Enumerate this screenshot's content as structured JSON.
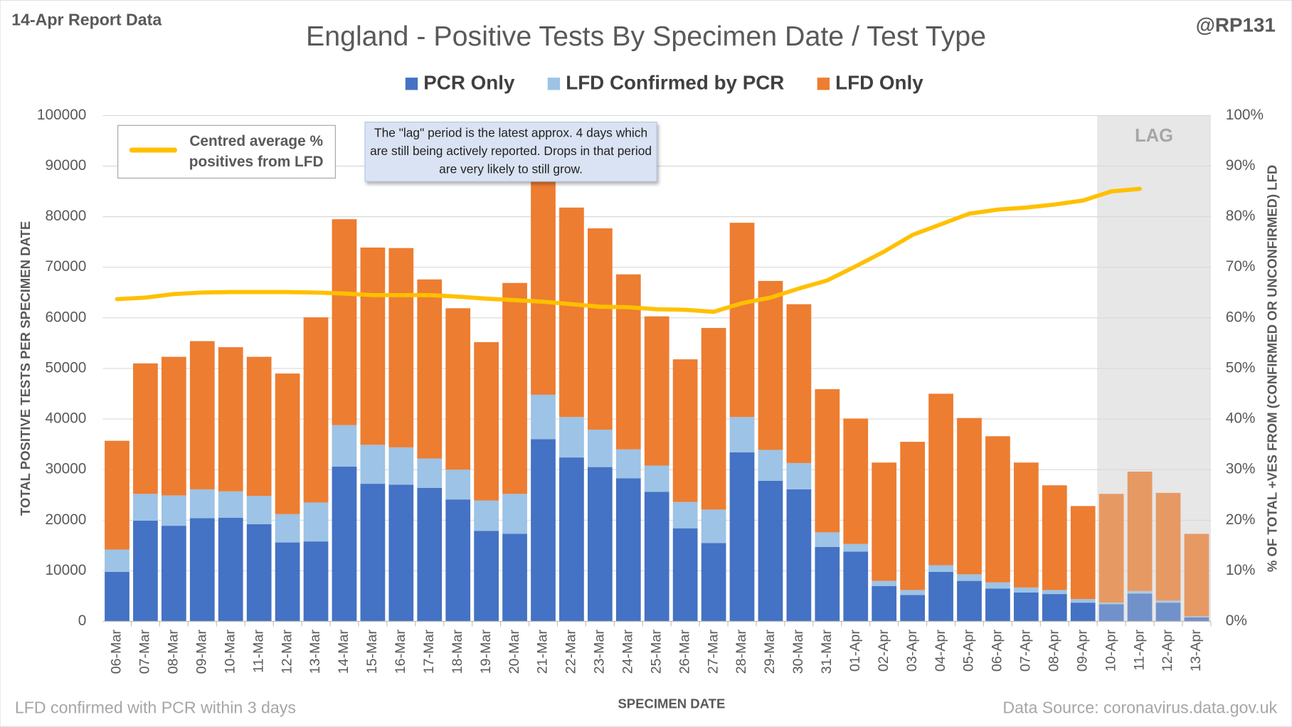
{
  "chart_data": {
    "type": "bar",
    "stacked": true,
    "title": "England - Positive Tests By Specimen Date / Test Type",
    "report_label": "14-Apr Report Data",
    "author": "@RP131",
    "footnote": "LFD confirmed with PCR within 3 days",
    "source": "Data Source: coronavirus.data.gov.uk",
    "xlabel": "SPECIMEN DATE",
    "ylabel": "TOTAL POSITIVE TESTS PER SPECIMEN DATE",
    "y2label": "% OF TOTAL +VES FROM (CONFIRMED OR UNCONFIRMED) LFD",
    "annotation": "The \"lag\" period is the latest approx. 4 days which are still being actively reported.  Drops in that period are very likely to still grow.",
    "lag_region": {
      "label": "LAG",
      "from": "10-Apr",
      "to": "13-Apr"
    },
    "categories": [
      "06-Mar",
      "07-Mar",
      "08-Mar",
      "09-Mar",
      "10-Mar",
      "11-Mar",
      "12-Mar",
      "13-Mar",
      "14-Mar",
      "15-Mar",
      "16-Mar",
      "17-Mar",
      "18-Mar",
      "19-Mar",
      "20-Mar",
      "21-Mar",
      "22-Mar",
      "23-Mar",
      "24-Mar",
      "25-Mar",
      "26-Mar",
      "27-Mar",
      "28-Mar",
      "29-Mar",
      "30-Mar",
      "31-Mar",
      "01-Apr",
      "02-Apr",
      "03-Apr",
      "04-Apr",
      "05-Apr",
      "06-Apr",
      "07-Apr",
      "08-Apr",
      "09-Apr",
      "10-Apr",
      "11-Apr",
      "12-Apr",
      "13-Apr"
    ],
    "series": [
      {
        "name": "PCR Only",
        "color": "#4472c4",
        "values": [
          9800,
          19900,
          18900,
          20400,
          20500,
          19200,
          15600,
          15800,
          30600,
          27200,
          27000,
          26400,
          24100,
          17900,
          17300,
          36000,
          32400,
          30500,
          28300,
          25600,
          18400,
          15500,
          33400,
          27800,
          26100,
          14700,
          13800,
          7000,
          5200,
          9800,
          8000,
          6500,
          5700,
          5400,
          3700,
          3400,
          5500,
          3700,
          800
        ]
      },
      {
        "name": "LFD Confirmed by PCR",
        "color": "#9dc3e6",
        "values": [
          4400,
          5300,
          6000,
          5700,
          5200,
          5600,
          5600,
          7700,
          8200,
          7700,
          7400,
          5800,
          5900,
          6000,
          7900,
          8800,
          8000,
          7400,
          5700,
          5200,
          5200,
          6600,
          7000,
          6100,
          5200,
          2900,
          1500,
          1000,
          1000,
          1300,
          1300,
          1200,
          1000,
          800,
          700,
          300,
          500,
          400,
          200
        ]
      },
      {
        "name": "LFD Only",
        "color": "#ed7d31",
        "values": [
          21500,
          25800,
          27400,
          29300,
          28500,
          27500,
          27800,
          36600,
          40700,
          39000,
          39400,
          35400,
          31900,
          31300,
          41700,
          43200,
          41400,
          39800,
          34600,
          29500,
          28200,
          35900,
          38400,
          33400,
          31400,
          28300,
          24800,
          23400,
          29300,
          33900,
          30900,
          28900,
          24700,
          20700,
          18400,
          21500,
          23600,
          21300,
          16300
        ]
      },
      {
        "name": "Centred average % positives from LFD",
        "type": "line",
        "axis": "y2",
        "color": "#ffc000",
        "values": [
          63.7,
          64,
          64.7,
          65,
          65.1,
          65.1,
          65.1,
          65,
          64.8,
          64.5,
          64.5,
          64.5,
          64.2,
          63.8,
          63.5,
          63.2,
          62.7,
          62.2,
          62.1,
          61.7,
          61.6,
          61.2,
          62.9,
          64,
          65.8,
          67.4,
          70.2,
          73.1,
          76.4,
          78.5,
          80.6,
          81.4,
          81.8,
          82.4,
          83.2,
          85,
          85.5,
          null,
          null
        ]
      }
    ],
    "ylim": [
      0,
      100000
    ],
    "yticks": [
      0,
      10000,
      20000,
      30000,
      40000,
      50000,
      60000,
      70000,
      80000,
      90000,
      100000
    ],
    "y2lim": [
      0,
      100
    ],
    "y2ticks": [
      {
        "value": 0,
        "label": "0%"
      },
      {
        "value": 10,
        "label": "10%"
      },
      {
        "value": 20,
        "label": "20%"
      },
      {
        "value": 30,
        "label": "30%"
      },
      {
        "value": 40,
        "label": "40%"
      },
      {
        "value": 50,
        "label": "50%"
      },
      {
        "value": 60,
        "label": "60%"
      },
      {
        "value": 70,
        "label": "70%"
      },
      {
        "value": 80,
        "label": "80%"
      },
      {
        "value": 90,
        "label": "90%"
      },
      {
        "value": 100,
        "label": "100%"
      }
    ],
    "grid": true
  }
}
